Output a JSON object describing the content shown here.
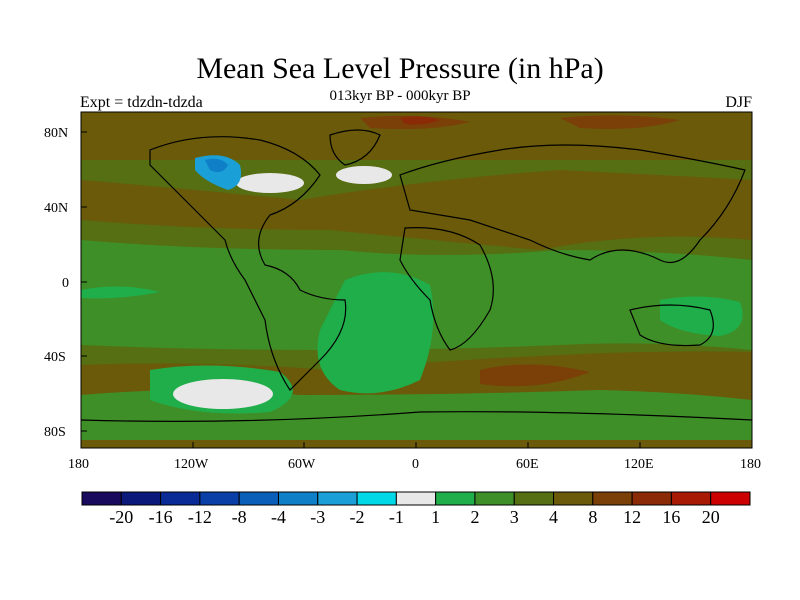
{
  "title": "Mean Sea Level Pressure (in hPa)",
  "subtitle": "013kyr BP - 000kyr BP",
  "left_label": "Expt = tdzdn-tdzda",
  "right_label": "DJF",
  "lat_ticks": [
    "80N",
    "40N",
    "0",
    "40S",
    "80S"
  ],
  "lon_ticks": [
    "180",
    "120W",
    "60W",
    "0",
    "60E",
    "120E",
    "180"
  ],
  "colorbar": {
    "colors": [
      "#1a0a5e",
      "#0b1a7a",
      "#0a2a96",
      "#0a3fa8",
      "#0a5fb8",
      "#0f7fc8",
      "#1a9fd6",
      "#00d8e8",
      "#e8e8e8",
      "#1fae4a",
      "#3f8f28",
      "#556f12",
      "#6a5a0a",
      "#7a4008",
      "#8a2a06",
      "#a81a04",
      "#cc0000"
    ],
    "labels": [
      "-20",
      "-16",
      "-12",
      "-8",
      "-4",
      "-3",
      "-2",
      "-1",
      "1",
      "2",
      "3",
      "4",
      "8",
      "12",
      "16",
      "20"
    ]
  },
  "colors": {
    "ocean_base": "#3f8f28",
    "high_base": "#6a5a0a",
    "strong_high": "#7a4008",
    "very_high": "#8a2a06",
    "bright_green": "#1fae4a",
    "near_zero": "#e8e8e8",
    "negative": "#1a9fd6"
  }
}
